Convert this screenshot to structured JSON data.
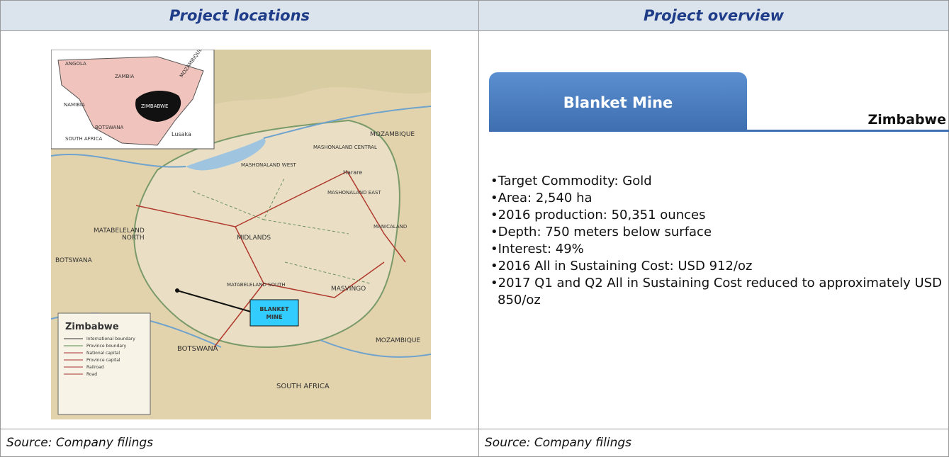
{
  "header": {
    "left": "Project locations",
    "right": "Project overview"
  },
  "map": {
    "inset_labels": [
      "ANGOLA",
      "ZAMBIA",
      "NAMIBIA",
      "ZIMBABWE",
      "MOZAMBIQUE",
      "BOTSWANA",
      "SOUTH AFRICA"
    ],
    "labels": [
      "MOZAMBIQUE",
      "BOTSWANA",
      "MATABELELAND",
      "NORTH",
      "MIDLANDS",
      "MASVINGO",
      "MASHONALAND WEST",
      "MASHONALAND CENTRAL",
      "MASHONALAND EAST",
      "MANICALAND",
      "MATABELELAND SOUTH",
      "Harare",
      "Lusaka",
      "BOTSWANA",
      "MOZAMBIQUE",
      "SOUTH AFRICA"
    ],
    "legend": {
      "title": "Zimbabwe",
      "items": [
        "International boundary",
        "Province boundary",
        "National capital",
        "Province capital",
        "Railroad",
        "Road"
      ]
    },
    "callout": [
      "BLANKET",
      "MINE"
    ]
  },
  "overview": {
    "tab": "Blanket Mine",
    "country": "Zimbabwe",
    "bullets": [
      "•Target Commodity: Gold",
      "•Area: 2,540 ha",
      "•2016 production: 50,351 ounces",
      "•Depth: 750 meters below surface",
      "•Interest: 49%",
      "•2016 All in Sustaining Cost: USD 912/oz",
      "•2017 Q1 and Q2 All in Sustaining Cost reduced to approximately USD 850/oz"
    ]
  },
  "footer": {
    "left": "Source: Company filings",
    "right": "Source: Company filings"
  }
}
